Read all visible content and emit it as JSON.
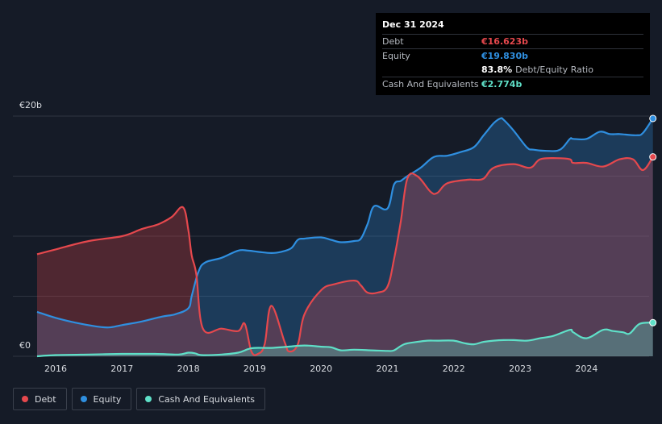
{
  "tooltip": {
    "date": "Dec 31 2024",
    "rows": {
      "debt": {
        "label": "Debt",
        "value": "€16.623b"
      },
      "equity": {
        "label": "Equity",
        "value": "€19.830b"
      },
      "ratio": {
        "value": "83.8%",
        "label": "Debt/Equity Ratio"
      },
      "cash": {
        "label": "Cash And Equivalents",
        "value": "€2.774b"
      }
    }
  },
  "legend": [
    {
      "key": "debt",
      "label": "Debt"
    },
    {
      "key": "equity",
      "label": "Equity"
    },
    {
      "key": "cash",
      "label": "Cash And Equivalents"
    }
  ],
  "colors": {
    "debt": "#e5484d",
    "equity": "#2f8fe0",
    "cash": "#5fe0c8",
    "background": "#151b27",
    "grid": "#2e3440"
  },
  "chart_data": {
    "type": "area",
    "ylim": [
      0,
      20
    ],
    "y_tick_labels": [
      {
        "value": 20,
        "label": "€20b"
      },
      {
        "value": 0,
        "label": "€0"
      }
    ],
    "y_gridlines": [
      0,
      5,
      10,
      15,
      20
    ],
    "x_ticks": [
      "2016",
      "2017",
      "2018",
      "2019",
      "2020",
      "2021",
      "2022",
      "2023",
      "2024"
    ],
    "xlim": [
      2015.7,
      2025.0
    ],
    "series": [
      {
        "name": "Debt",
        "key": "debt",
        "x": [
          2015.72,
          2016.0,
          2016.5,
          2017.0,
          2017.3,
          2017.55,
          2017.75,
          2017.92,
          2018.0,
          2018.05,
          2018.12,
          2018.22,
          2018.5,
          2018.75,
          2018.85,
          2018.95,
          2019.05,
          2019.15,
          2019.25,
          2019.45,
          2019.52,
          2019.65,
          2019.75,
          2020.0,
          2020.2,
          2020.5,
          2020.6,
          2020.7,
          2020.85,
          2021.0,
          2021.1,
          2021.2,
          2021.3,
          2021.45,
          2021.65,
          2021.75,
          2021.9,
          2022.2,
          2022.3,
          2022.45,
          2022.6,
          2022.9,
          2023.15,
          2023.3,
          2023.55,
          2023.75,
          2023.8,
          2024.0,
          2024.25,
          2024.5,
          2024.7,
          2024.85,
          2025.0
        ],
        "y": [
          8.5,
          8.9,
          9.6,
          10.0,
          10.6,
          11.0,
          11.6,
          12.4,
          10.5,
          8.4,
          6.8,
          2.3,
          2.3,
          2.1,
          2.7,
          0.4,
          0.2,
          1.0,
          4.2,
          1.2,
          0.4,
          1.0,
          3.5,
          5.5,
          6.0,
          6.3,
          5.9,
          5.3,
          5.3,
          5.8,
          8.1,
          11.2,
          14.8,
          15.0,
          13.7,
          13.6,
          14.4,
          14.7,
          14.7,
          14.8,
          15.7,
          16.0,
          15.7,
          16.4,
          16.5,
          16.4,
          16.1,
          16.1,
          15.8,
          16.4,
          16.4,
          15.5,
          16.6
        ]
      },
      {
        "name": "Equity",
        "key": "equity",
        "x": [
          2015.72,
          2016.0,
          2016.3,
          2016.6,
          2016.8,
          2017.0,
          2017.3,
          2017.6,
          2017.8,
          2018.0,
          2018.05,
          2018.15,
          2018.25,
          2018.5,
          2018.75,
          2018.9,
          2019.05,
          2019.25,
          2019.4,
          2019.55,
          2019.65,
          2019.75,
          2020.0,
          2020.15,
          2020.3,
          2020.5,
          2020.6,
          2020.7,
          2020.8,
          2021.0,
          2021.1,
          2021.2,
          2021.3,
          2021.5,
          2021.7,
          2021.9,
          2022.1,
          2022.3,
          2022.45,
          2022.6,
          2022.7,
          2022.75,
          2022.9,
          2023.1,
          2023.2,
          2023.4,
          2023.6,
          2023.75,
          2023.8,
          2024.0,
          2024.2,
          2024.35,
          2024.5,
          2024.75,
          2024.85,
          2025.0
        ],
        "y": [
          3.7,
          3.2,
          2.8,
          2.5,
          2.4,
          2.6,
          2.9,
          3.3,
          3.5,
          4.0,
          5.0,
          7.0,
          7.8,
          8.2,
          8.8,
          8.8,
          8.7,
          8.6,
          8.7,
          9.0,
          9.7,
          9.8,
          9.9,
          9.7,
          9.5,
          9.6,
          9.8,
          11.0,
          12.5,
          12.3,
          14.3,
          14.6,
          15.0,
          15.7,
          16.6,
          16.7,
          17.0,
          17.4,
          18.4,
          19.4,
          19.8,
          19.7,
          18.8,
          17.4,
          17.2,
          17.1,
          17.2,
          18.1,
          18.1,
          18.1,
          18.7,
          18.5,
          18.5,
          18.4,
          18.6,
          19.8
        ]
      },
      {
        "name": "Cash And Equivalents",
        "key": "cash",
        "x": [
          2015.72,
          2016.0,
          2016.5,
          2017.0,
          2017.5,
          2017.85,
          2018.0,
          2018.1,
          2018.2,
          2018.5,
          2018.75,
          2018.9,
          2019.0,
          2019.25,
          2019.5,
          2019.75,
          2020.0,
          2020.15,
          2020.3,
          2020.5,
          2020.75,
          2021.0,
          2021.1,
          2021.25,
          2021.45,
          2021.6,
          2021.75,
          2022.0,
          2022.15,
          2022.3,
          2022.45,
          2022.6,
          2022.75,
          2022.9,
          2023.1,
          2023.3,
          2023.5,
          2023.75,
          2023.8,
          2024.0,
          2024.25,
          2024.4,
          2024.55,
          2024.65,
          2024.8,
          2025.0
        ],
        "y": [
          0.0,
          0.1,
          0.15,
          0.2,
          0.2,
          0.15,
          0.3,
          0.25,
          0.1,
          0.15,
          0.3,
          0.6,
          0.7,
          0.7,
          0.8,
          0.9,
          0.8,
          0.75,
          0.5,
          0.55,
          0.5,
          0.45,
          0.5,
          1.0,
          1.2,
          1.3,
          1.3,
          1.3,
          1.1,
          1.0,
          1.2,
          1.3,
          1.35,
          1.35,
          1.3,
          1.5,
          1.7,
          2.2,
          2.0,
          1.5,
          2.2,
          2.1,
          2.0,
          1.9,
          2.7,
          2.8
        ]
      }
    ],
    "legend_placement": "bottom-left",
    "grid": true
  }
}
